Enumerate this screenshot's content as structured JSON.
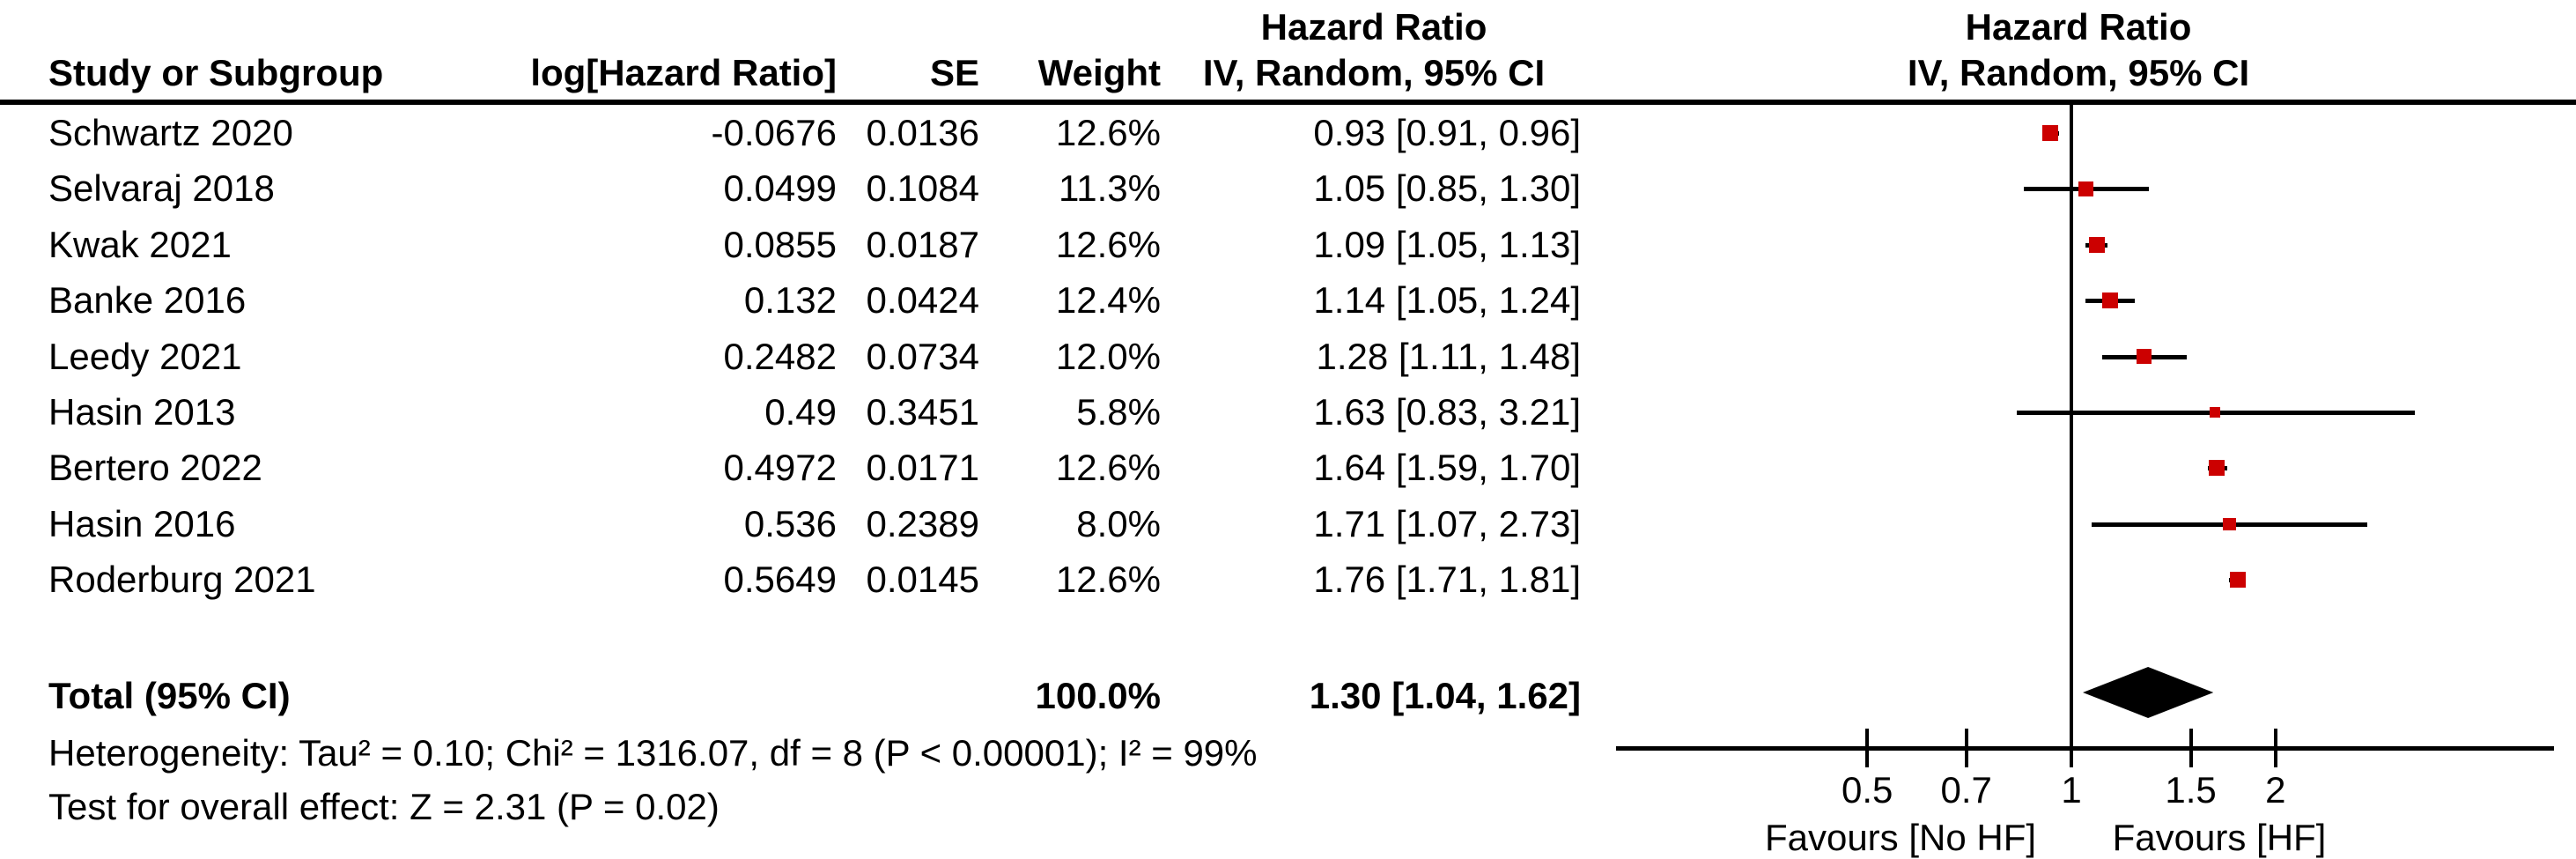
{
  "table": {
    "header": {
      "hazard_ratio_col_title": "Hazard Ratio",
      "study": "Study or Subgroup",
      "loghr": "log[Hazard Ratio]",
      "se": "SE",
      "weight": "Weight",
      "ci": "IV, Random, 95% CI",
      "plot_title": "Hazard Ratio",
      "plot_subtitle": "IV, Random, 95% CI"
    },
    "rows": [
      {
        "study": "Schwartz 2020",
        "loghr": "-0.0676",
        "se": "0.0136",
        "weight": "12.6%",
        "ci": "0.93 [0.91, 0.96]"
      },
      {
        "study": "Selvaraj 2018",
        "loghr": "0.0499",
        "se": "0.1084",
        "weight": "11.3%",
        "ci": "1.05 [0.85, 1.30]"
      },
      {
        "study": "Kwak 2021",
        "loghr": "0.0855",
        "se": "0.0187",
        "weight": "12.6%",
        "ci": "1.09 [1.05, 1.13]"
      },
      {
        "study": "Banke 2016",
        "loghr": "0.132",
        "se": "0.0424",
        "weight": "12.4%",
        "ci": "1.14 [1.05, 1.24]"
      },
      {
        "study": "Leedy 2021",
        "loghr": "0.2482",
        "se": "0.0734",
        "weight": "12.0%",
        "ci": "1.28 [1.11, 1.48]"
      },
      {
        "study": "Hasin 2013",
        "loghr": "0.49",
        "se": "0.3451",
        "weight": "5.8%",
        "ci": "1.63 [0.83, 3.21]"
      },
      {
        "study": "Bertero 2022",
        "loghr": "0.4972",
        "se": "0.0171",
        "weight": "12.6%",
        "ci": "1.64 [1.59, 1.70]"
      },
      {
        "study": "Hasin 2016",
        "loghr": "0.536",
        "se": "0.2389",
        "weight": "8.0%",
        "ci": "1.71 [1.07, 2.73]"
      },
      {
        "study": "Roderburg 2021",
        "loghr": "0.5649",
        "se": "0.0145",
        "weight": "12.6%",
        "ci": "1.76 [1.71, 1.81]"
      }
    ],
    "total": {
      "label": "Total (95% CI)",
      "weight": "100.0%",
      "ci": "1.30 [1.04, 1.62]"
    },
    "heterogeneity": "Heterogeneity: Tau² = 0.10; Chi² = 1316.07, df = 8 (P < 0.00001); I² = 99%",
    "overall_effect": "Test for overall effect: Z = 2.31 (P = 0.02)"
  },
  "chart_data": {
    "type": "forest",
    "scale": "log10",
    "effect_measure": "Hazard Ratio",
    "model": "IV, Random, 95% CI",
    "studies": [
      {
        "name": "Schwartz 2020",
        "hr": 0.93,
        "lo": 0.91,
        "hi": 0.96,
        "weight_pct": 12.6
      },
      {
        "name": "Selvaraj 2018",
        "hr": 1.05,
        "lo": 0.85,
        "hi": 1.3,
        "weight_pct": 11.3
      },
      {
        "name": "Kwak 2021",
        "hr": 1.09,
        "lo": 1.05,
        "hi": 1.13,
        "weight_pct": 12.6
      },
      {
        "name": "Banke 2016",
        "hr": 1.14,
        "lo": 1.05,
        "hi": 1.24,
        "weight_pct": 12.4
      },
      {
        "name": "Leedy 2021",
        "hr": 1.28,
        "lo": 1.11,
        "hi": 1.48,
        "weight_pct": 12.0
      },
      {
        "name": "Hasin 2013",
        "hr": 1.63,
        "lo": 0.83,
        "hi": 3.21,
        "weight_pct": 5.8
      },
      {
        "name": "Bertero 2022",
        "hr": 1.64,
        "lo": 1.59,
        "hi": 1.7,
        "weight_pct": 12.6
      },
      {
        "name": "Hasin 2016",
        "hr": 1.71,
        "lo": 1.07,
        "hi": 2.73,
        "weight_pct": 8.0
      },
      {
        "name": "Roderburg 2021",
        "hr": 1.76,
        "lo": 1.71,
        "hi": 1.81,
        "weight_pct": 12.6
      }
    ],
    "total": {
      "hr": 1.3,
      "lo": 1.04,
      "hi": 1.62
    },
    "axis": {
      "ticks": [
        "0.5",
        "0.7",
        "1",
        "1.5",
        "2"
      ],
      "xlim": [
        0.21,
        5.1
      ],
      "reference_line": 1,
      "grid": false
    },
    "favours_left": "Favours [No HF]",
    "favours_right": "Favours [HF]",
    "colors": {
      "square": "#CC0000",
      "ci_line": "#000000",
      "diamond": "#000000",
      "axis": "#000000"
    }
  }
}
